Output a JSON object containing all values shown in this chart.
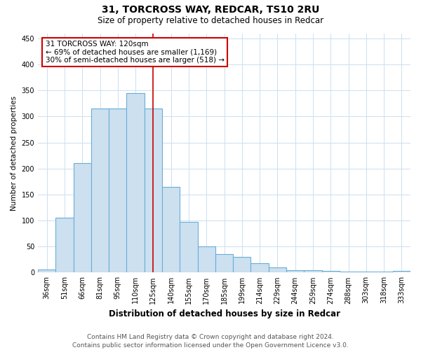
{
  "title1": "31, TORCROSS WAY, REDCAR, TS10 2RU",
  "title2": "Size of property relative to detached houses in Redcar",
  "xlabel": "Distribution of detached houses by size in Redcar",
  "ylabel": "Number of detached properties",
  "categories": [
    "36sqm",
    "51sqm",
    "66sqm",
    "81sqm",
    "95sqm",
    "110sqm",
    "125sqm",
    "140sqm",
    "155sqm",
    "170sqm",
    "185sqm",
    "199sqm",
    "214sqm",
    "229sqm",
    "244sqm",
    "259sqm",
    "274sqm",
    "288sqm",
    "303sqm",
    "318sqm",
    "333sqm"
  ],
  "values": [
    6,
    105,
    210,
    315,
    315,
    345,
    315,
    165,
    98,
    50,
    35,
    30,
    18,
    10,
    5,
    5,
    3,
    2,
    2,
    2,
    3
  ],
  "bar_color": "#cce0f0",
  "bar_edge_color": "#6aaed6",
  "annotation_line1": "31 TORCROSS WAY: 120sqm",
  "annotation_line2": "← 69% of detached houses are smaller (1,169)",
  "annotation_line3": "30% of semi-detached houses are larger (518) →",
  "annotation_box_facecolor": "#ffffff",
  "annotation_border_color": "#cc0000",
  "vline_color": "#cc0000",
  "vline_x": 6.0,
  "ylim": [
    0,
    460
  ],
  "yticks": [
    0,
    50,
    100,
    150,
    200,
    250,
    300,
    350,
    400,
    450
  ],
  "footer1": "Contains HM Land Registry data © Crown copyright and database right 2024.",
  "footer2": "Contains public sector information licensed under the Open Government Licence v3.0.",
  "background_color": "#ffffff",
  "grid_color": "#cce0f0",
  "title1_fontsize": 10,
  "title2_fontsize": 8.5,
  "xlabel_fontsize": 8.5,
  "ylabel_fontsize": 7.5,
  "tick_fontsize": 7,
  "annotation_fontsize": 7.5,
  "footer_fontsize": 6.5
}
